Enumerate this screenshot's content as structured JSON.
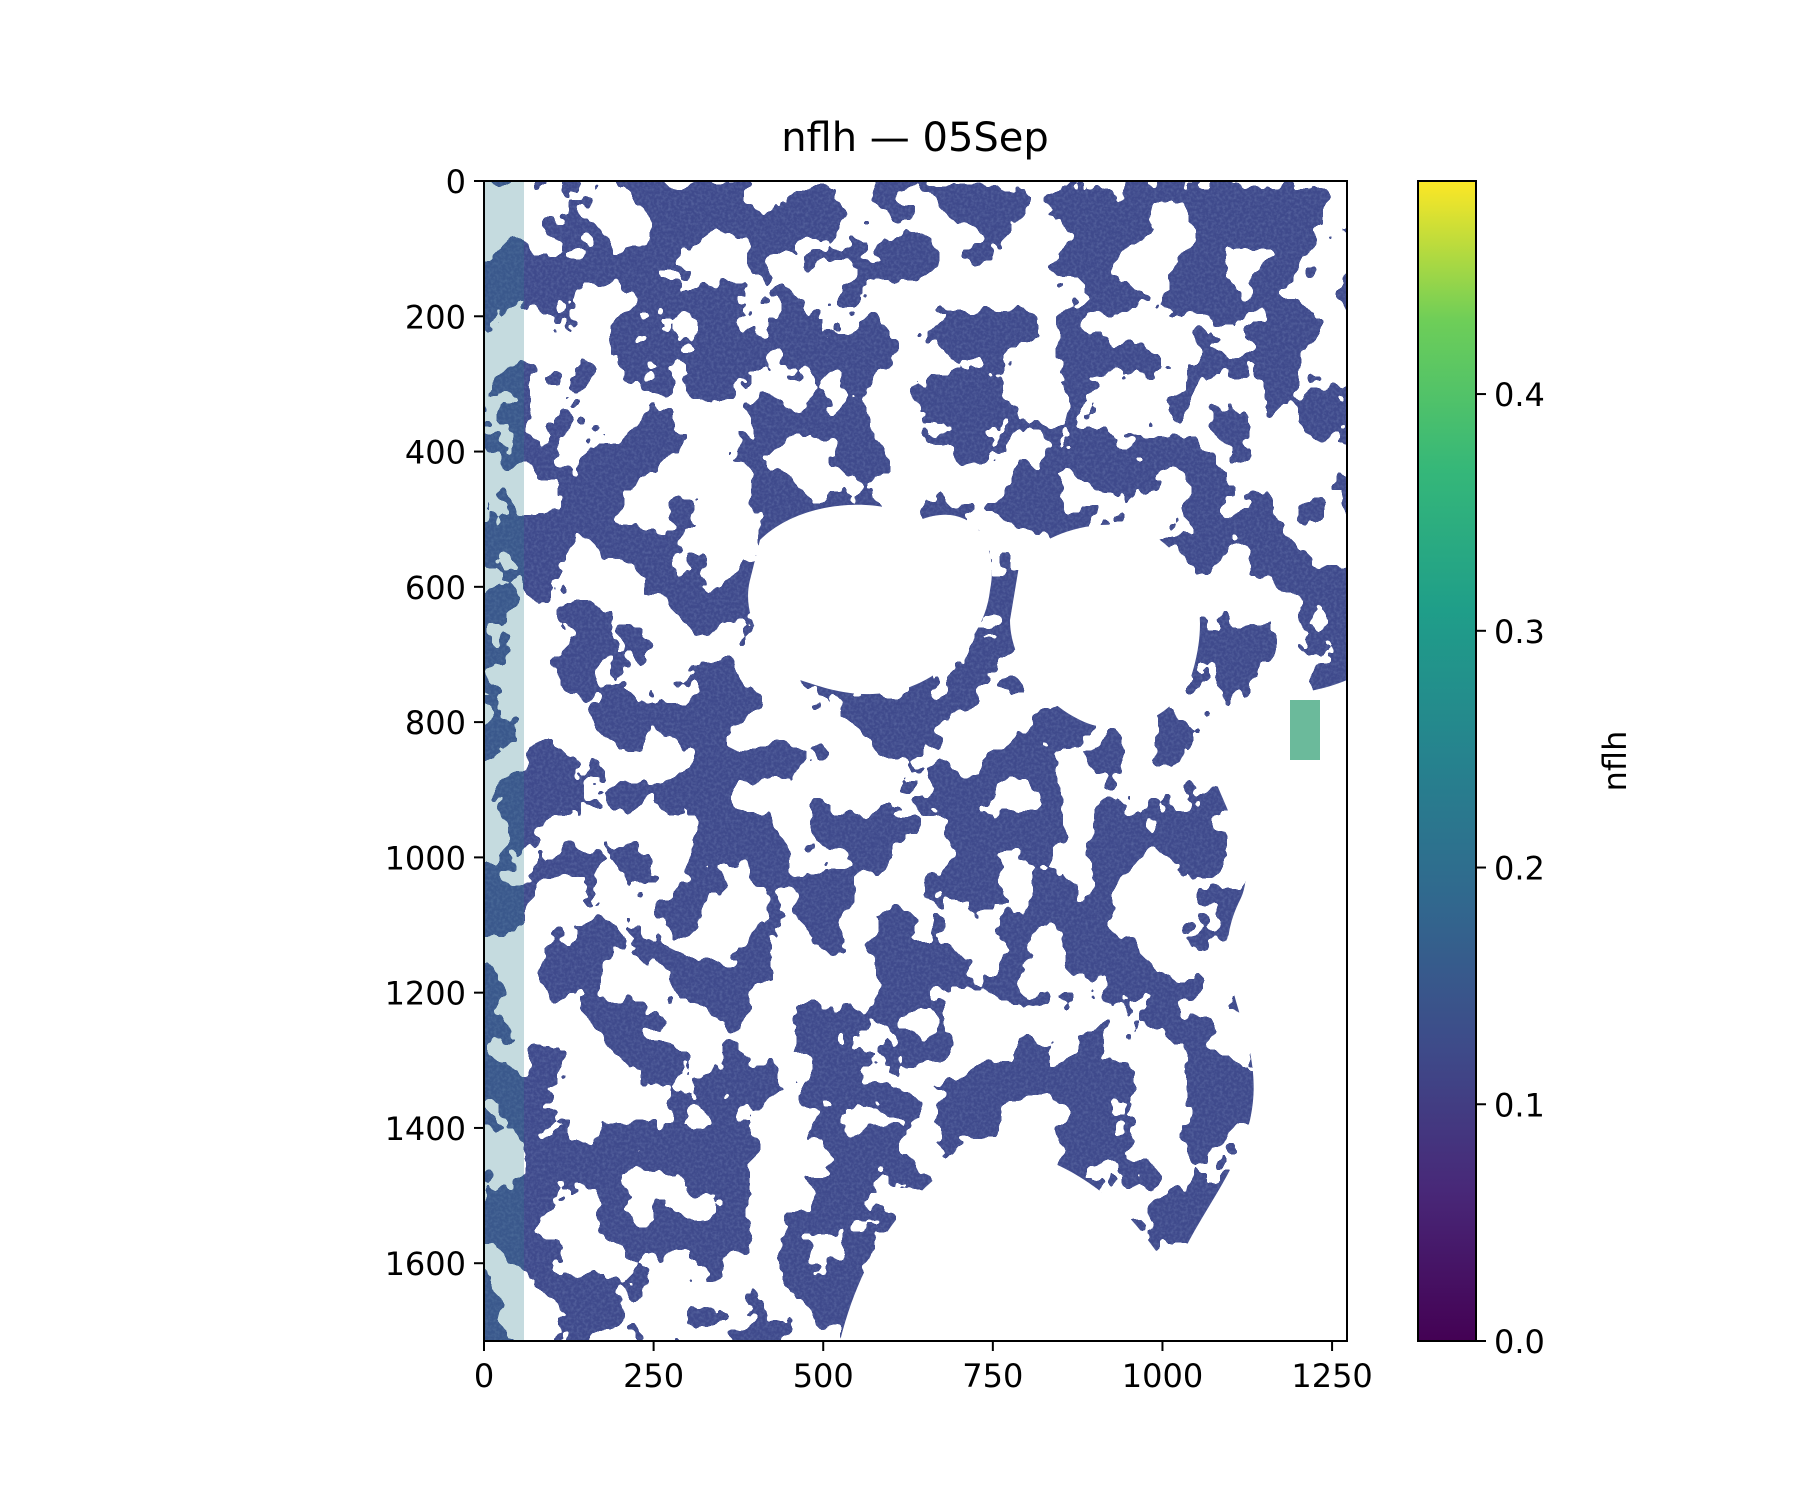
{
  "chart_data": {
    "type": "heatmap",
    "title": "nflh — 05Sep",
    "xlabel": "",
    "ylabel": "",
    "xlim": [
      0,
      1272
    ],
    "ylim": [
      1715,
      0
    ],
    "x_ticks": [
      0,
      250,
      500,
      750,
      1000,
      1250
    ],
    "x_tick_labels": [
      "0",
      "250",
      "500",
      "750",
      "1000",
      "1250"
    ],
    "y_ticks": [
      0,
      200,
      400,
      600,
      800,
      1000,
      1200,
      1400,
      1600
    ],
    "y_tick_labels": [
      "0",
      "200",
      "400",
      "600",
      "800",
      "1000",
      "1200",
      "1400",
      "1600"
    ],
    "colorbar": {
      "label": "nflh",
      "colormap": "viridis",
      "range": [
        0.0,
        0.49
      ],
      "ticks": [
        0.0,
        0.1,
        0.2,
        0.3,
        0.4
      ],
      "tick_labels": [
        "0.0",
        "0.1",
        "0.2",
        "0.3",
        "0.4"
      ]
    },
    "missing_value_color": "#ffffff",
    "dominant_value": 0.1,
    "max_observed_value": 0.33,
    "colors": {
      "viridis_0": "#440154",
      "viridis_low": "#3b528b",
      "viridis_mid": "#21918c",
      "viridis_high": "#5ec962",
      "viridis_top": "#fde725",
      "water": "#3f4a8c",
      "nodata": "#ffffff"
    }
  }
}
